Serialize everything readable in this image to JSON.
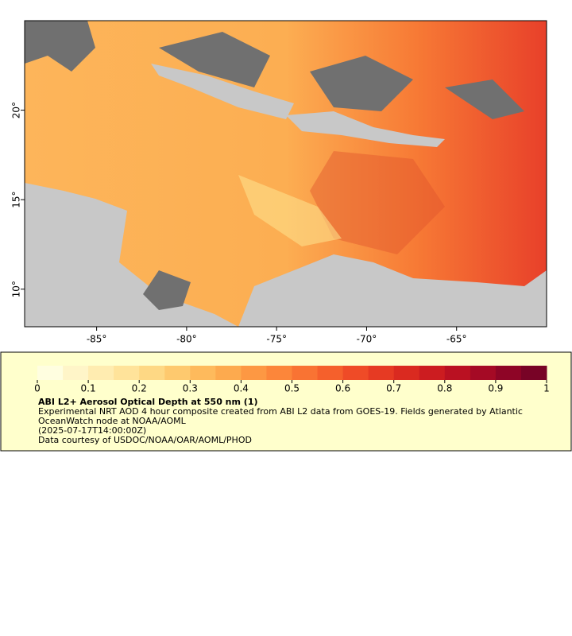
{
  "map": {
    "xlim": [
      -89,
      -60
    ],
    "ylim": [
      7.9,
      25
    ],
    "xticks": [
      {
        "value": -85,
        "label": "-85°"
      },
      {
        "value": -80,
        "label": "-80°"
      },
      {
        "value": -75,
        "label": "-75°"
      },
      {
        "value": -70,
        "label": "-70°"
      },
      {
        "value": -65,
        "label": "-65°"
      }
    ],
    "yticks": [
      {
        "value": 10,
        "label": "10°"
      },
      {
        "value": 15,
        "label": "15°"
      },
      {
        "value": 20,
        "label": "20°"
      }
    ]
  },
  "legend": {
    "range": [
      0,
      1
    ],
    "ticks": [
      0,
      0.1,
      0.2,
      0.3,
      0.4,
      0.5,
      0.6,
      0.7,
      0.8,
      0.9,
      1
    ],
    "colors": [
      "#fffee0",
      "#fff5c8",
      "#ffecb0",
      "#ffe39a",
      "#fed884",
      "#fec96e",
      "#feba5c",
      "#fdaa4e",
      "#fd9843",
      "#fc863a",
      "#f97333",
      "#f5602c",
      "#ef4b27",
      "#e63a23",
      "#da2a20",
      "#cc1c20",
      "#ba1122",
      "#a50a25",
      "#8e0526",
      "#780326"
    ],
    "title": "ABI L2+ Aerosol Optical Depth at 550 nm (1)",
    "lines": [
      "Experimental NRT AOD 4 hour composite created from ABI L2 data from GOES-19. Fields generated by Atlantic OceanWatch node at NOAA/AOML",
      "(2025-07-17T14:00:00Z)",
      "Data courtesy of USDOC/NOAA/OAR/AOML/PHOD"
    ]
  }
}
